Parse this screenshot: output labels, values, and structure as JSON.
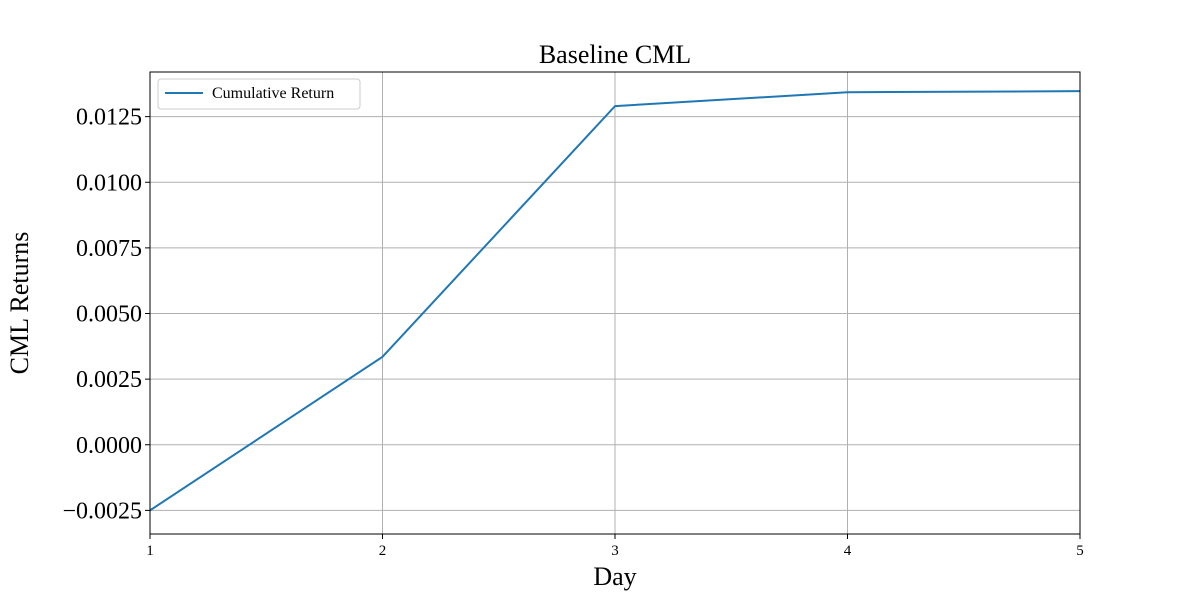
{
  "chart_data": {
    "type": "line",
    "title": "Baseline CML",
    "xlabel": "Day",
    "ylabel": "CML Returns",
    "x": [
      1,
      2,
      3,
      4,
      5
    ],
    "series": [
      {
        "name": "Cumulative Return",
        "values": [
          -0.0025,
          0.00335,
          0.0129,
          0.01343,
          0.01347
        ],
        "color": "#1f77b4"
      }
    ],
    "xlim": [
      1,
      5
    ],
    "ylim": [
      -0.0034,
      0.0142
    ],
    "xticks": [
      "1",
      "2",
      "3",
      "4",
      "5"
    ],
    "yticks": [
      -0.0025,
      0.0,
      0.0025,
      0.005,
      0.0075,
      0.01,
      0.0125
    ],
    "ytick_labels": [
      "−0.0025",
      "0.0000",
      "0.0025",
      "0.0050",
      "0.0075",
      "0.0100",
      "0.0125"
    ],
    "grid": true,
    "legend_position": "upper-left"
  }
}
